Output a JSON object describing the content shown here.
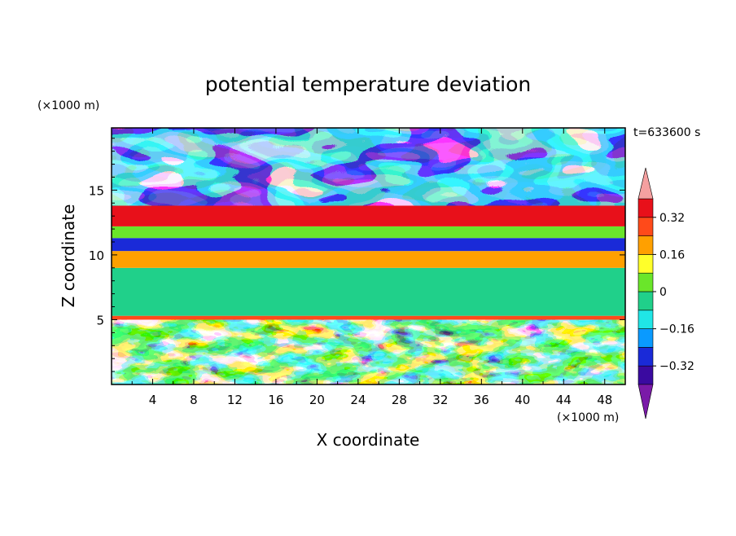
{
  "chart_data": {
    "type": "heatmap",
    "title": "potential temperature deviation",
    "xlabel": "X coordinate",
    "ylabel": "Z coordinate",
    "x_unit": "(×1000 m)",
    "y_unit": "(×1000 m)",
    "time_label": "t=633600 s",
    "xlim": [
      0,
      50
    ],
    "ylim": [
      0,
      19.8
    ],
    "x_ticks": [
      4,
      8,
      12,
      16,
      20,
      24,
      28,
      32,
      36,
      40,
      44,
      48
    ],
    "y_ticks": [
      5,
      10,
      15
    ],
    "colorbar": {
      "levels": [
        -0.4,
        -0.32,
        -0.24,
        -0.16,
        -0.08,
        0,
        0.08,
        0.16,
        0.24,
        0.32,
        0.4
      ],
      "tick_labels": [
        "0.32",
        "0.16",
        "0",
        "−0.16",
        "−0.32"
      ],
      "tick_values": [
        0.32,
        0.16,
        0,
        -0.16,
        -0.32
      ],
      "colors": [
        "#7a1aa8",
        "#3a0aa0",
        "#1a2ad8",
        "#0a9aff",
        "#20e6e6",
        "#20d08a",
        "#6ae62a",
        "#ffff2a",
        "#ffa000",
        "#ff4a1a",
        "#e8101a",
        "#f5a0a0"
      ]
    },
    "bands": [
      {
        "z": [
          0,
          5
        ],
        "desc": "boundary layer, turbulent mix of all levels"
      },
      {
        "z": [
          5,
          5.3
        ],
        "value": 0.24
      },
      {
        "z": [
          5.3,
          9
        ],
        "value": -0.08
      },
      {
        "z": [
          9,
          10.3
        ],
        "value": 0.16
      },
      {
        "z": [
          10.3,
          11.3
        ],
        "value": -0.3
      },
      {
        "z": [
          11.3,
          12.2
        ],
        "value": 0.0
      },
      {
        "z": [
          12.2,
          13.8
        ],
        "value": 0.32
      },
      {
        "z": [
          13.8,
          19.8
        ],
        "desc": "upper layer, extremes -0.4 and 0.4"
      }
    ]
  }
}
